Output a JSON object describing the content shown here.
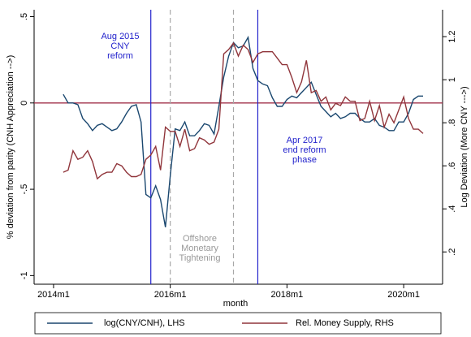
{
  "chart_data": {
    "type": "line",
    "x_label": "month",
    "y_label": "% deviation from parity (CNH Appreciation -->)",
    "y2_label": "Log Deviation (More CNY --->)",
    "x": [
      "2014m3",
      "2014m4",
      "2014m5",
      "2014m6",
      "2014m7",
      "2014m8",
      "2014m9",
      "2014m10",
      "2014m11",
      "2014m12",
      "2015m1",
      "2015m2",
      "2015m3",
      "2015m4",
      "2015m5",
      "2015m6",
      "2015m7",
      "2015m8",
      "2015m9",
      "2015m10",
      "2015m11",
      "2015m12",
      "2016m1",
      "2016m2",
      "2016m3",
      "2016m4",
      "2016m5",
      "2016m6",
      "2016m7",
      "2016m8",
      "2016m9",
      "2016m10",
      "2016m11",
      "2016m12",
      "2017m1",
      "2017m2",
      "2017m3",
      "2017m4",
      "2017m5",
      "2017m6",
      "2017m7",
      "2017m8",
      "2017m9",
      "2017m10",
      "2017m11",
      "2017m12",
      "2018m1",
      "2018m2",
      "2018m3",
      "2018m4",
      "2018m5",
      "2018m6",
      "2018m7",
      "2018m8",
      "2018m9",
      "2018m10",
      "2018m11",
      "2018m12",
      "2019m1",
      "2019m2",
      "2019m3",
      "2019m4",
      "2019m5",
      "2019m6",
      "2019m7",
      "2019m8",
      "2019m9",
      "2019m10",
      "2019m11",
      "2019m12",
      "2020m1",
      "2020m2",
      "2020m3",
      "2020m4",
      "2020m5"
    ],
    "series": [
      {
        "name": "log(CNY/CNH), LHS",
        "color": "#1a476f",
        "axis": "y",
        "values": [
          0.05,
          0,
          0,
          -0.01,
          -0.09,
          -0.12,
          -0.16,
          -0.13,
          -0.12,
          -0.14,
          -0.16,
          -0.15,
          -0.11,
          -0.06,
          -0.02,
          -0.01,
          -0.11,
          -0.53,
          -0.55,
          -0.48,
          -0.56,
          -0.72,
          -0.42,
          -0.15,
          -0.16,
          -0.11,
          -0.19,
          -0.19,
          -0.16,
          -0.12,
          -0.13,
          -0.18,
          -0.02,
          0.15,
          0.27,
          0.35,
          0.32,
          0.33,
          0.38,
          0.2,
          0.13,
          0.11,
          0.1,
          0.03,
          -0.02,
          -0.02,
          0.02,
          0.04,
          0.03,
          0.06,
          0.09,
          0.12,
          0.05,
          -0.02,
          -0.05,
          -0.08,
          -0.06,
          -0.09,
          -0.08,
          -0.06,
          -0.06,
          -0.09,
          -0.11,
          -0.11,
          -0.09,
          -0.13,
          -0.14,
          -0.16,
          -0.16,
          -0.11,
          -0.11,
          -0.06,
          0.02,
          0.04,
          0.04
        ]
      },
      {
        "name": "Rel. Money Supply, RHS",
        "color": "#90353b",
        "axis": "y2",
        "values": [
          0.57,
          0.58,
          0.67,
          0.63,
          0.64,
          0.67,
          0.62,
          0.54,
          0.56,
          0.57,
          0.57,
          0.61,
          0.6,
          0.57,
          0.55,
          0.55,
          0.56,
          0.63,
          0.65,
          0.69,
          0.58,
          0.78,
          0.76,
          0.76,
          0.69,
          0.77,
          0.67,
          0.68,
          0.73,
          0.72,
          0.7,
          0.71,
          0.77,
          1.12,
          1.14,
          1.17,
          1.11,
          1.16,
          1.14,
          1.08,
          1.12,
          1.13,
          1.13,
          1.13,
          1.1,
          1.07,
          1.07,
          1.01,
          0.94,
          0.99,
          1.09,
          0.94,
          0.95,
          0.9,
          0.92,
          0.86,
          0.89,
          0.88,
          0.92,
          0.9,
          0.9,
          0.81,
          0.82,
          0.9,
          0.81,
          0.88,
          0.78,
          0.84,
          0.8,
          0.86,
          0.92,
          0.82,
          0.77,
          0.77,
          0.75
        ]
      }
    ],
    "xlim": [
      "2013m9",
      "2020m9"
    ],
    "xticks": [
      "2014m1",
      "2016m1",
      "2018m1",
      "2020m1"
    ],
    "ylim": [
      -1.05,
      0.54
    ],
    "yticks": [
      {
        "value": 0.5,
        "label": ".5"
      },
      0,
      {
        "value": -0.5,
        "label": "-.5"
      },
      -1
    ],
    "y2lim": [
      0.05,
      1.325
    ],
    "y2ticks": [
      {
        "value": 0.2,
        "label": ".2"
      },
      {
        "value": 0.4,
        "label": ".4"
      },
      {
        "value": 0.6,
        "label": ".6"
      },
      {
        "value": 0.8,
        "label": ".8"
      },
      1,
      1.2
    ],
    "hline": {
      "y": 0,
      "color": "#a0304a"
    },
    "vlines": [
      {
        "x": "2015m9",
        "color": "#2222cc",
        "dashed": false
      },
      {
        "x": "2016m1",
        "color": "#a8a8a8",
        "dashed": true
      },
      {
        "x": "2017m2",
        "color": "#a8a8a8",
        "dashed": true
      },
      {
        "x": "2017m7",
        "color": "#2222cc",
        "dashed": false
      }
    ],
    "annotations": [
      {
        "lines": [
          "Aug 2015",
          "CNY",
          "reform"
        ],
        "color": "#2222cc"
      },
      {
        "lines": [
          "Apr 2017",
          "end reform",
          "phase"
        ],
        "color": "#2222cc"
      },
      {
        "lines": [
          "Offshore",
          "Monetary",
          "Tightening"
        ],
        "color": "#999999"
      }
    ],
    "legend": "bottom"
  }
}
